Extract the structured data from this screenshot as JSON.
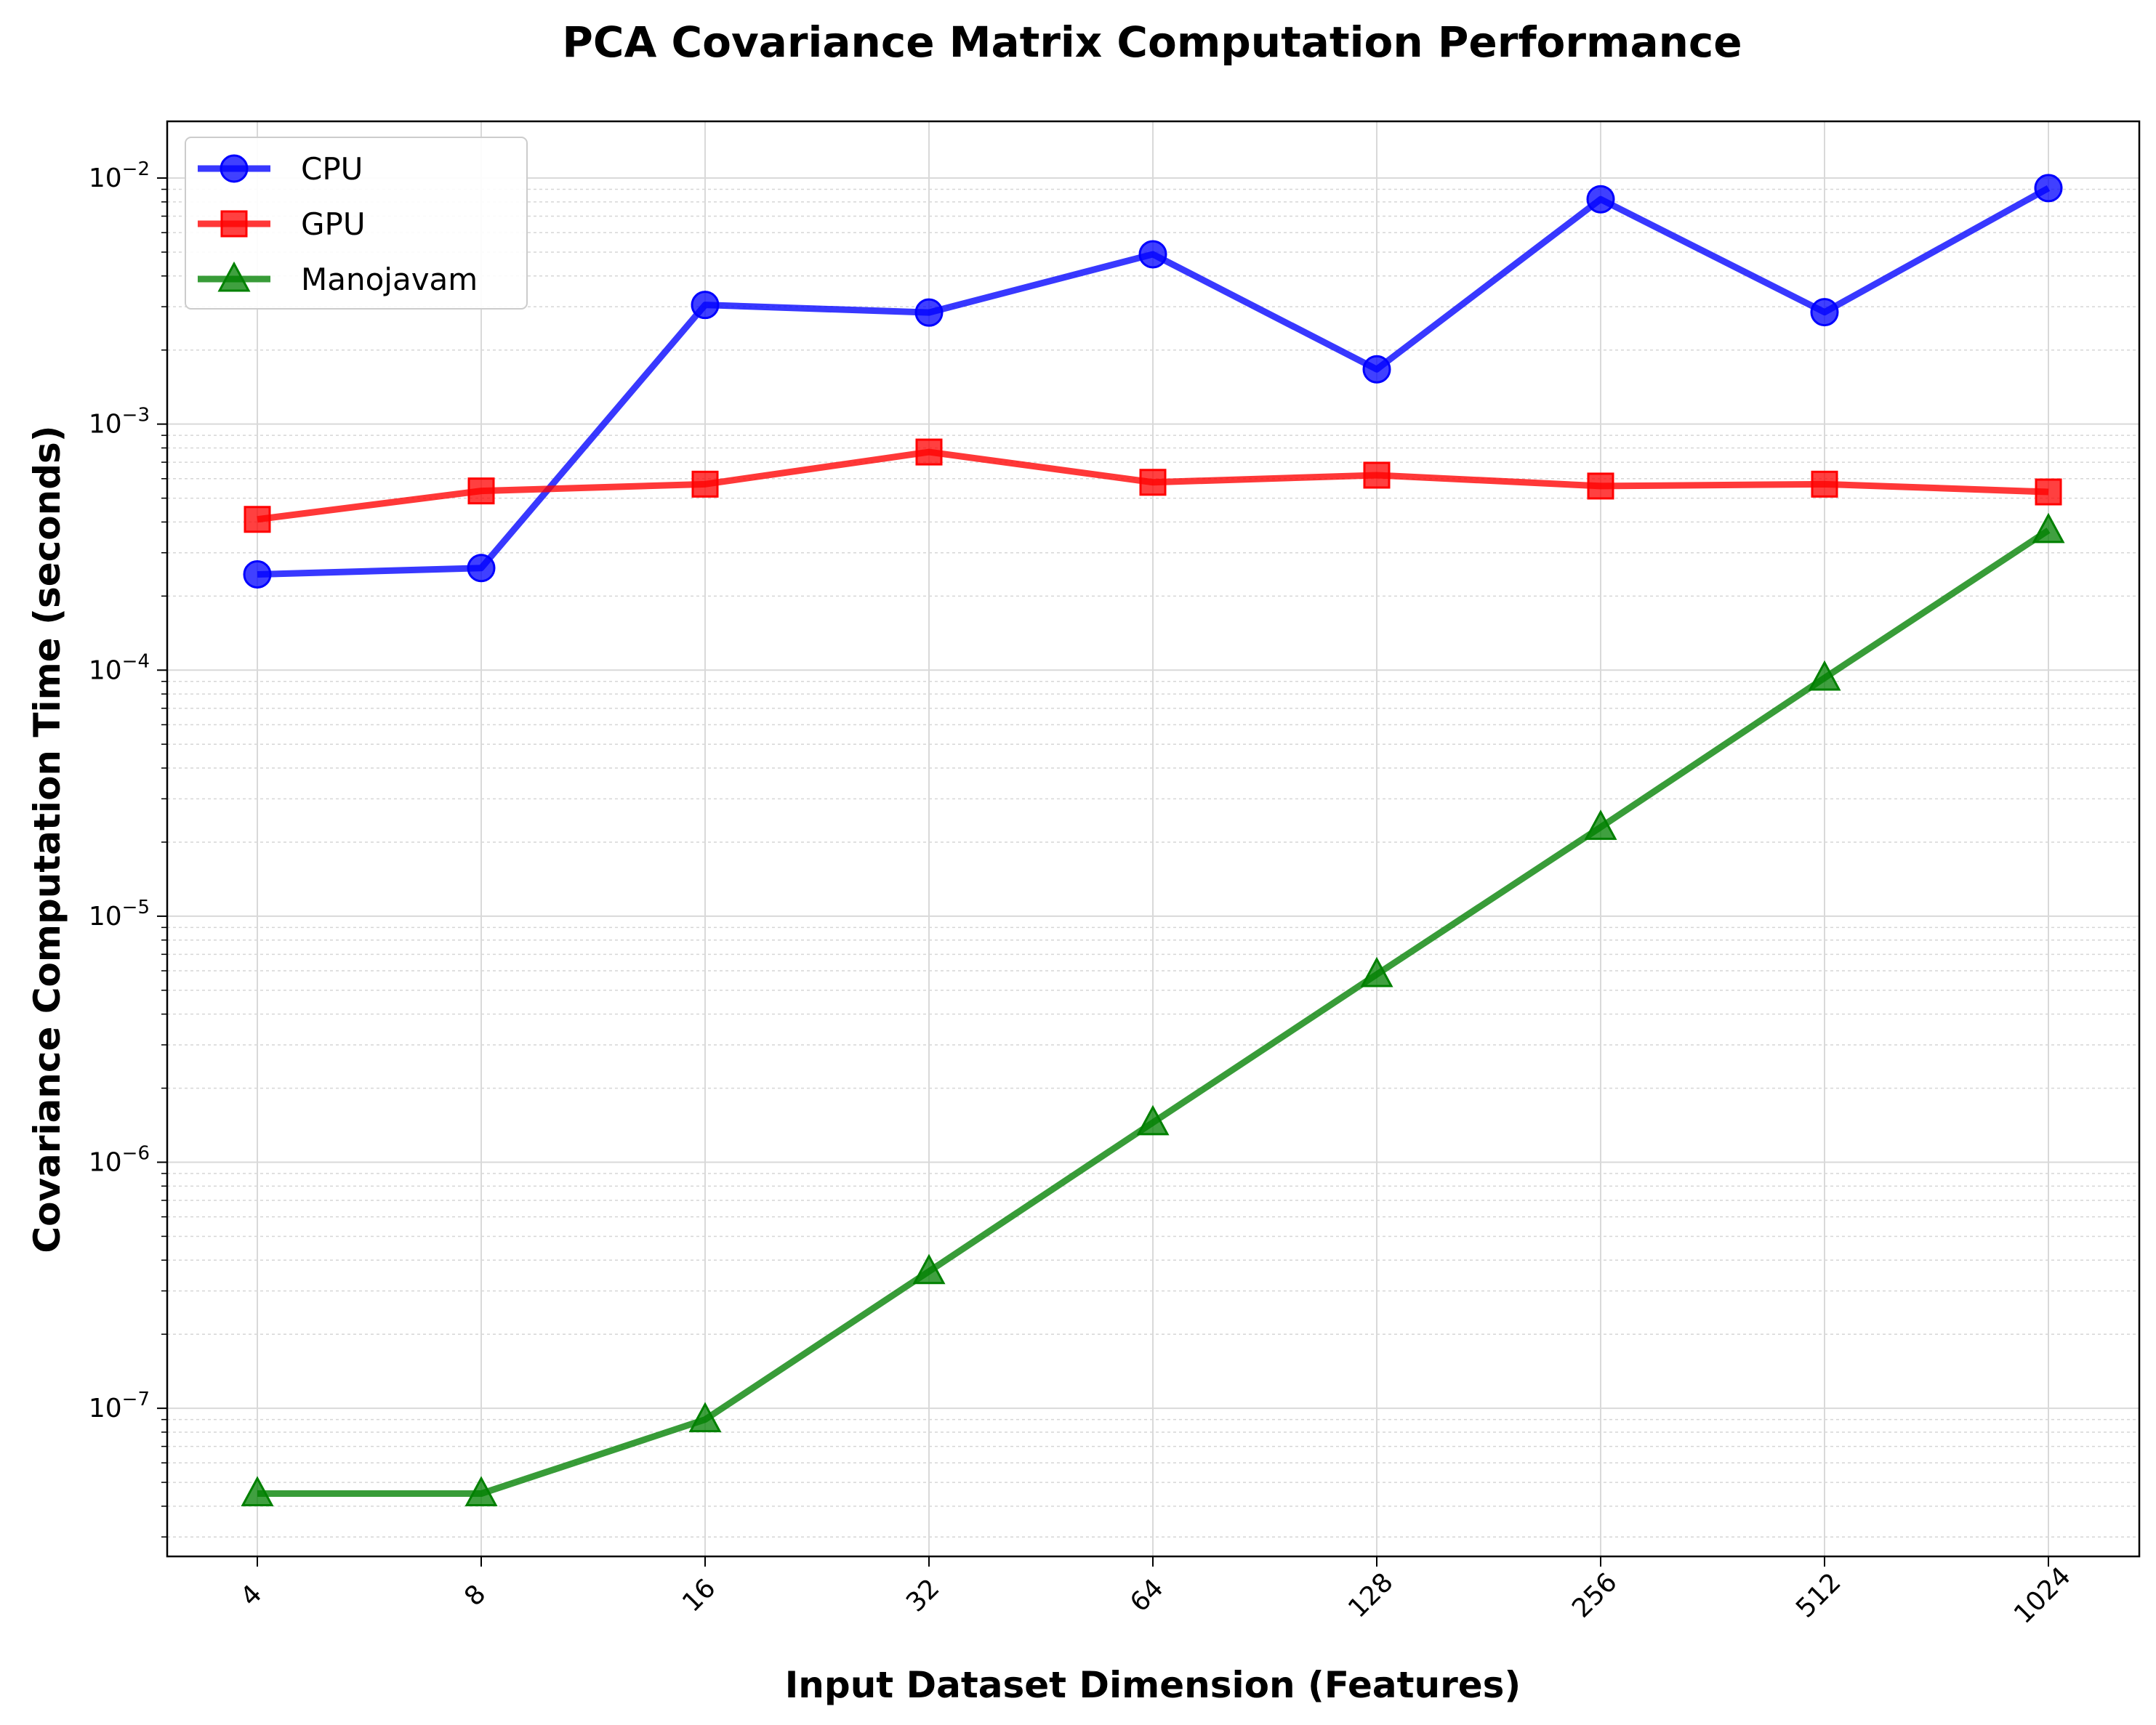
{
  "chart_data": {
    "type": "line",
    "title": "PCA Covariance Matrix Computation Performance",
    "xlabel": "Input Dataset Dimension (Features)",
    "ylabel": "Covariance Computation Time (seconds)",
    "x": [
      4,
      8,
      16,
      32,
      64,
      128,
      256,
      512,
      1024
    ],
    "x_scale": "log2",
    "y_scale": "log10",
    "ylim": [
      2.5e-08,
      0.017
    ],
    "y_tick_exponents": [
      -7,
      -6,
      -5,
      -4,
      -3,
      -2
    ],
    "grid": true,
    "legend_position": "top-left",
    "series": [
      {
        "name": "CPU",
        "color": "#0000ff",
        "marker": "circle",
        "values": [
          0.000245,
          0.00026,
          0.00305,
          0.00284,
          0.0049,
          0.00167,
          0.0082,
          0.00285,
          0.0091
        ]
      },
      {
        "name": "GPU",
        "color": "#ff0000",
        "marker": "square",
        "values": [
          0.00041,
          0.000535,
          0.00057,
          0.00077,
          0.00058,
          0.00062,
          0.00056,
          0.00057,
          0.00053
        ]
      },
      {
        "name": "Manojavam",
        "color": "#008000",
        "marker": "triangle",
        "values": [
          4.5e-08,
          4.5e-08,
          9e-08,
          3.6e-07,
          1.45e-06,
          5.8e-06,
          2.3e-05,
          9.3e-05,
          0.00037
        ]
      }
    ]
  }
}
